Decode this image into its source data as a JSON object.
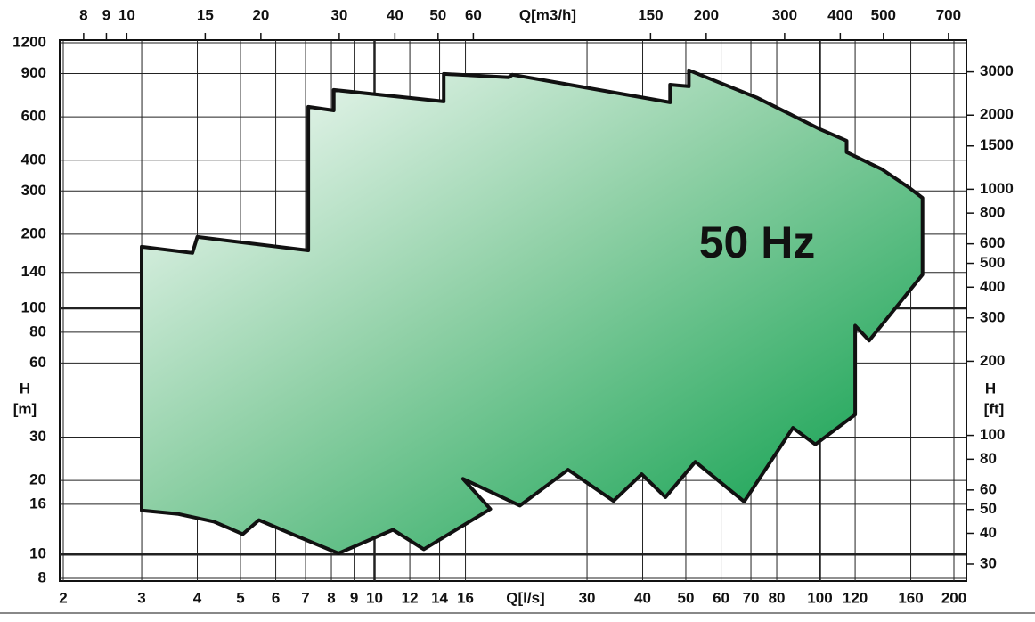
{
  "chart_data": {
    "type": "area",
    "annotation": "50 Hz",
    "x_label": "Q[l/s]",
    "x2_label": "Q[m3/h]",
    "y_label": [
      "H",
      "[m]"
    ],
    "y2_label": [
      "H",
      "[ft]"
    ],
    "log_x": true,
    "log_y": true,
    "grid": true,
    "color": "#009a44",
    "x": [
      3,
      3.9,
      4.0,
      7.1,
      7.1,
      8.1,
      8.1,
      14.3,
      14.3,
      20,
      20.4,
      46.1,
      46.1,
      50.8,
      50.8,
      72.4,
      100,
      114.8,
      114.8,
      138,
      158,
      170,
      170,
      129,
      120,
      120,
      97.7,
      87,
      67.6,
      52.5,
      45,
      39.8,
      34.4,
      27.2,
      21.2,
      15.8,
      18.2,
      12.9,
      11,
      8.3,
      6.6,
      5.5,
      5.06,
      4.36,
      3.63,
      3
    ],
    "values": [
      178,
      168,
      195,
      172,
      659,
      637,
      772,
      693,
      897,
      868,
      890,
      687,
      811,
      798,
      928,
      716,
      535,
      480,
      431,
      367,
      311,
      281,
      137,
      74,
      85,
      37,
      28,
      32.7,
      16.4,
      23.8,
      17.1,
      21.2,
      16.5,
      22.1,
      15.8,
      20.3,
      15.3,
      10.5,
      12.6,
      10.1,
      12.0,
      13.8,
      12.1,
      13.6,
      14.6,
      15.1
    ],
    "xlim": [
      2,
      200
    ],
    "xticks": [
      2,
      3,
      4,
      5,
      6,
      7,
      8,
      9,
      10,
      12,
      14,
      16,
      30,
      40,
      50,
      60,
      70,
      80,
      100,
      120,
      160,
      200
    ],
    "x2lim": [
      7.2,
      720
    ],
    "x2ticks": [
      8,
      9,
      10,
      15,
      20,
      30,
      40,
      50,
      60,
      150,
      200,
      300,
      400,
      500,
      700
    ],
    "ylim": [
      8,
      1200
    ],
    "yticks": [
      8,
      10,
      16,
      20,
      30,
      60,
      80,
      100,
      140,
      200,
      300,
      400,
      600,
      900,
      1200
    ],
    "y2lim": [
      26.25,
      3937
    ],
    "y2ticks": [
      30,
      40,
      50,
      60,
      80,
      100,
      200,
      300,
      400,
      500,
      600,
      800,
      1000,
      1500,
      2000,
      3000
    ]
  }
}
